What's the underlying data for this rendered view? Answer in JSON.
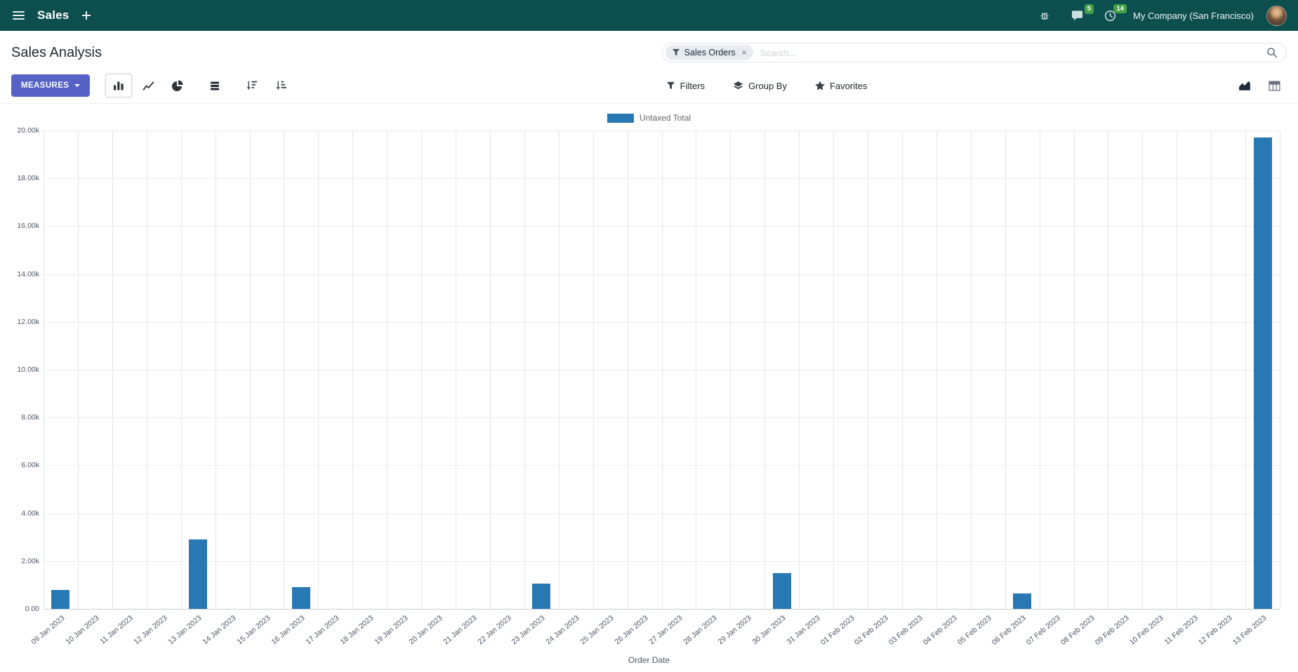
{
  "colors": {
    "topbar_bg": "#0d4f4f",
    "primary_button": "#5662c6",
    "bar": "#2878b4",
    "badge_green": "#43a047"
  },
  "topbar": {
    "app_name": "Sales",
    "company_name": "My Company (San Francisco)",
    "messages_badge": "5",
    "activities_badge": "14"
  },
  "control_panel": {
    "title": "Sales Analysis",
    "measures_button": "MEASURES",
    "search": {
      "facet_label": "Sales Orders",
      "facet_remove": "×",
      "placeholder": "Search..."
    },
    "filters_button": "Filters",
    "group_by_button": "Group By",
    "favorites_button": "Favorites"
  },
  "chart_data": {
    "type": "bar",
    "title": "",
    "xlabel": "Order Date",
    "ylabel": "",
    "legend_position": "top",
    "grid": true,
    "ylim": [
      0,
      20000
    ],
    "ytick_step": 2000,
    "ytick_labels": [
      "0.00",
      "2.00k",
      "4.00k",
      "6.00k",
      "8.00k",
      "10.00k",
      "12.00k",
      "14.00k",
      "16.00k",
      "18.00k",
      "20.00k"
    ],
    "categories": [
      "09 Jan 2023",
      "10 Jan 2023",
      "11 Jan 2023",
      "12 Jan 2023",
      "13 Jan 2023",
      "14 Jan 2023",
      "15 Jan 2023",
      "16 Jan 2023",
      "17 Jan 2023",
      "18 Jan 2023",
      "19 Jan 2023",
      "20 Jan 2023",
      "21 Jan 2023",
      "22 Jan 2023",
      "23 Jan 2023",
      "24 Jan 2023",
      "25 Jan 2023",
      "26 Jan 2023",
      "27 Jan 2023",
      "28 Jan 2023",
      "29 Jan 2023",
      "30 Jan 2023",
      "31 Jan 2023",
      "01 Feb 2023",
      "02 Feb 2023",
      "03 Feb 2023",
      "04 Feb 2023",
      "05 Feb 2023",
      "06 Feb 2023",
      "07 Feb 2023",
      "08 Feb 2023",
      "09 Feb 2023",
      "10 Feb 2023",
      "11 Feb 2023",
      "12 Feb 2023",
      "13 Feb 2023"
    ],
    "series": [
      {
        "name": "Untaxed Total",
        "color": "#2878b4",
        "values": [
          800,
          0,
          0,
          0,
          2900,
          0,
          0,
          900,
          0,
          0,
          0,
          0,
          0,
          0,
          1050,
          0,
          0,
          0,
          0,
          0,
          0,
          1500,
          0,
          0,
          0,
          0,
          0,
          0,
          650,
          0,
          0,
          0,
          0,
          0,
          0,
          19700
        ]
      }
    ]
  }
}
